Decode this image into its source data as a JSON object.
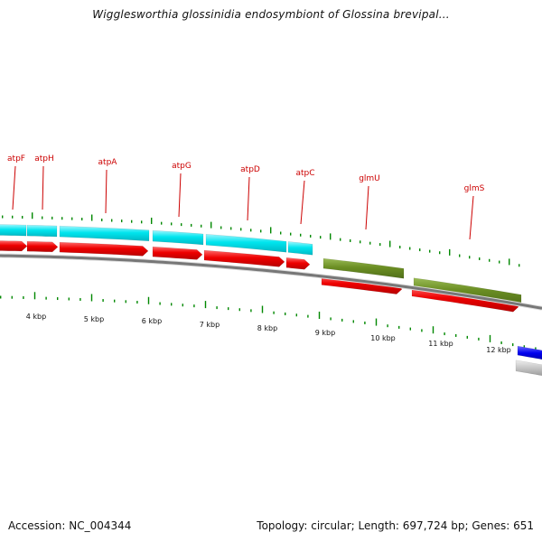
{
  "title": "Wigglesworthia glossinidia endosymbiont of Glossina brevipal...",
  "footer": {
    "accession": "Accession: NC_004344",
    "summary": "Topology: circular; Length: 697,724 bp; Genes: 651"
  },
  "gene_labels": [
    "atpF",
    "atpH",
    "atpA",
    "atpG",
    "atpD",
    "atpC",
    "glmU",
    "glmS"
  ],
  "kbp_labels": [
    "4 kbp",
    "5 kbp",
    "6 kbp",
    "7 kbp",
    "8 kbp",
    "9 kbp",
    "10 kbp",
    "11 kbp",
    "12 kbp"
  ],
  "colors": {
    "cds": "#ee0000",
    "gene": "#00e5ee",
    "feature_green": "#6b8e23",
    "blue_feature": "#0000ee",
    "gray_feature": "#bbbbbb",
    "backbone": "#777777",
    "tick": "#008800",
    "label": "#cc0000"
  }
}
